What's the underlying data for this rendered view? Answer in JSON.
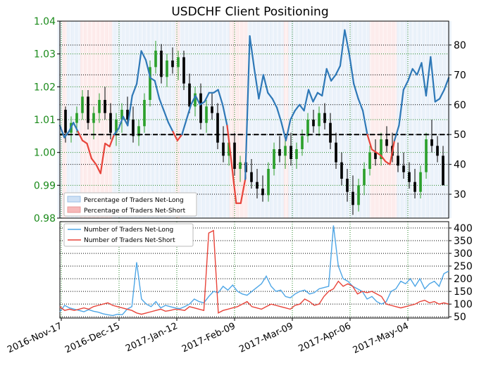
{
  "colors": {
    "left_axis_text": "#1a8a1a",
    "long_line": "#2e78b7",
    "short_line": "#e8443a",
    "long_fill": "#dbe8f5",
    "short_fill": "#fbdcdc",
    "candle_up": "#2ca02c",
    "candle_down": "#000000",
    "grid_green": "#2a8a2a",
    "small_long": "#4ea6e6",
    "small_short": "#e8443a"
  },
  "chart_data": [
    {
      "type": "line",
      "title": "USDCHF Client Positioning",
      "x_tick_labels": [
        "2016-Nov-17",
        "2016-Dec-15",
        "2017-Jan-12",
        "2017-Feb-09",
        "2017-Mar-09",
        "2017-Apr-06",
        "2017-May-04"
      ],
      "y_left_ticks": [
        "0.98",
        "0.99",
        "1.00",
        "1.01",
        "1.02",
        "1.03",
        "1.04"
      ],
      "ylim_left": [
        0.98,
        1.04
      ],
      "y_right_ticks": [
        "30",
        "40",
        "50",
        "60",
        "70",
        "80"
      ],
      "ylim_right": [
        22,
        88
      ],
      "reference_line": 50,
      "legend": [
        "Percentage of Traders Net-Long",
        "Percentage of Traders Net-Short"
      ],
      "legend_position": "lower-left",
      "percent_net_long": [
        53,
        49,
        51,
        54,
        51,
        48,
        47,
        42,
        40,
        37,
        47,
        46,
        50,
        52,
        56,
        53,
        63,
        67,
        78,
        75,
        69,
        68,
        62,
        58,
        54,
        51,
        48,
        50,
        55,
        60,
        63,
        60,
        61,
        64,
        64,
        65,
        60,
        53,
        40,
        27,
        27,
        35,
        83,
        72,
        62,
        70,
        64,
        62,
        59,
        54,
        48,
        55,
        58,
        60,
        58,
        65,
        61,
        64,
        63,
        72,
        68,
        70,
        73,
        85,
        77,
        67,
        62,
        58,
        50,
        45,
        44,
        43,
        41,
        40,
        48,
        53,
        65,
        68,
        72,
        70,
        74,
        63,
        76,
        61,
        62,
        65,
        69
      ],
      "candles_ohlc": [
        [
          1.013,
          1.014,
          1.003,
          1.006
        ],
        [
          1.006,
          1.011,
          1.003,
          1.009
        ],
        [
          1.009,
          1.014,
          1.006,
          1.012
        ],
        [
          1.012,
          1.019,
          1.01,
          1.017
        ],
        [
          1.017,
          1.019,
          1.007,
          1.009
        ],
        [
          1.009,
          1.014,
          1.004,
          1.012
        ],
        [
          1.012,
          1.018,
          1.009,
          1.016
        ],
        [
          1.016,
          1.02,
          1.01,
          1.012
        ],
        [
          1.012,
          1.015,
          1.004,
          1.006
        ],
        [
          1.006,
          1.012,
          1.002,
          1.01
        ],
        [
          1.01,
          1.015,
          1.006,
          1.013
        ],
        [
          1.013,
          1.017,
          1.008,
          1.01
        ],
        [
          1.01,
          1.014,
          1.003,
          1.005
        ],
        [
          1.005,
          1.01,
          1.002,
          1.008
        ],
        [
          1.008,
          1.018,
          1.006,
          1.016
        ],
        [
          1.016,
          1.028,
          1.014,
          1.026
        ],
        [
          1.026,
          1.034,
          1.024,
          1.031
        ],
        [
          1.031,
          1.033,
          1.021,
          1.023
        ],
        [
          1.023,
          1.03,
          1.02,
          1.028
        ],
        [
          1.028,
          1.032,
          1.024,
          1.026
        ],
        [
          1.026,
          1.031,
          1.022,
          1.029
        ],
        [
          1.029,
          1.031,
          1.019,
          1.021
        ],
        [
          1.021,
          1.024,
          1.012,
          1.014
        ],
        [
          1.014,
          1.02,
          1.011,
          1.018
        ],
        [
          1.018,
          1.021,
          1.007,
          1.009
        ],
        [
          1.009,
          1.016,
          1.006,
          1.014
        ],
        [
          1.014,
          1.018,
          1.01,
          1.012
        ],
        [
          1.012,
          1.015,
          1.001,
          1.003
        ],
        [
          1.003,
          1.008,
          0.997,
          0.999
        ],
        [
          0.999,
          1.005,
          0.996,
          1.003
        ],
        [
          1.003,
          1.006,
          0.993,
          0.995
        ],
        [
          0.995,
          0.999,
          0.991,
          0.997
        ],
        [
          0.997,
          1.001,
          0.992,
          0.994
        ],
        [
          0.994,
          0.998,
          0.989,
          0.991
        ],
        [
          0.991,
          0.995,
          0.986,
          0.989
        ],
        [
          0.989,
          0.993,
          0.985,
          0.987
        ],
        [
          0.987,
          0.997,
          0.985,
          0.995
        ],
        [
          0.995,
          1.003,
          0.993,
          1.001
        ],
        [
          1.001,
          1.005,
          0.997,
          0.999
        ],
        [
          0.999,
          1.004,
          0.995,
          1.002
        ],
        [
          1.002,
          1.006,
          0.996,
          0.998
        ],
        [
          0.998,
          1.003,
          0.995,
          1.001
        ],
        [
          1.001,
          1.007,
          0.999,
          1.005
        ],
        [
          1.005,
          1.012,
          1.003,
          1.01
        ],
        [
          1.01,
          1.013,
          1.006,
          1.008
        ],
        [
          1.008,
          1.014,
          1.005,
          1.012
        ],
        [
          1.012,
          1.015,
          1.007,
          1.009
        ],
        [
          1.009,
          1.012,
          1.001,
          1.003
        ],
        [
          1.003,
          1.006,
          0.995,
          0.997
        ],
        [
          0.997,
          1.0,
          0.99,
          0.992
        ],
        [
          0.992,
          0.995,
          0.985,
          0.988
        ],
        [
          0.988,
          0.993,
          0.981,
          0.984
        ],
        [
          0.984,
          0.992,
          0.982,
          0.99
        ],
        [
          0.99,
          0.997,
          0.987,
          0.995
        ],
        [
          0.995,
          1.002,
          0.993,
          1.0
        ],
        [
          1.0,
          1.004,
          0.996,
          0.998
        ],
        [
          0.998,
          1.006,
          0.996,
          1.004
        ],
        [
          1.004,
          1.008,
          1.0,
          1.002
        ],
        [
          1.002,
          1.006,
          0.997,
          0.999
        ],
        [
          0.999,
          1.003,
          0.994,
          0.996
        ],
        [
          0.996,
          1.0,
          0.992,
          0.994
        ],
        [
          0.994,
          0.997,
          0.989,
          0.991
        ],
        [
          0.991,
          0.995,
          0.986,
          0.988
        ],
        [
          0.988,
          0.996,
          0.986,
          0.994
        ],
        [
          0.994,
          1.006,
          0.992,
          1.004
        ],
        [
          1.004,
          1.01,
          1.0,
          1.002
        ],
        [
          1.002,
          1.005,
          0.997,
          0.999
        ],
        [
          0.999,
          1.002,
          0.993,
          0.99
        ]
      ],
      "candle_count_note": ""
    },
    {
      "type": "line",
      "x_tick_labels": [
        "2016-Nov-17",
        "2016-Dec-15",
        "2017-Jan-12",
        "2017-Feb-09",
        "2017-Mar-09",
        "2017-Apr-06",
        "2017-May-04"
      ],
      "y_right_ticks": [
        "50",
        "100",
        "150",
        "200",
        "250",
        "300",
        "350",
        "400"
      ],
      "ylim": [
        45,
        425
      ],
      "legend": [
        "Number of Traders Net-Long",
        "Number of Traders Net-Short"
      ],
      "legend_position": "upper-left",
      "series": [
        {
          "name": "Number of Traders Net-Long",
          "values": [
            70,
            95,
            85,
            80,
            75,
            70,
            78,
            72,
            68,
            62,
            58,
            55,
            60,
            58,
            80,
            90,
            265,
            120,
            100,
            90,
            110,
            85,
            95,
            90,
            85,
            82,
            90,
            100,
            120,
            110,
            105,
            130,
            150,
            145,
            170,
            155,
            175,
            150,
            140,
            135,
            150,
            165,
            180,
            210,
            170,
            150,
            155,
            130,
            125,
            140,
            150,
            155,
            140,
            145,
            160,
            165,
            170,
            410,
            250,
            200,
            190,
            170,
            160,
            150,
            120,
            130,
            110,
            100,
            110,
            150,
            160,
            190,
            180,
            200,
            170,
            200,
            160,
            180,
            190,
            170,
            220,
            230
          ]
        },
        {
          "name": "Number of Traders Net-Short",
          "values": [
            90,
            75,
            80,
            75,
            80,
            85,
            80,
            90,
            95,
            100,
            105,
            95,
            90,
            85,
            80,
            75,
            65,
            60,
            65,
            70,
            75,
            80,
            72,
            75,
            80,
            78,
            75,
            90,
            85,
            80,
            75,
            380,
            390,
            65,
            75,
            80,
            85,
            90,
            100,
            110,
            90,
            85,
            80,
            90,
            100,
            95,
            90,
            85,
            80,
            95,
            100,
            120,
            110,
            95,
            100,
            130,
            150,
            160,
            190,
            170,
            180,
            170,
            140,
            150,
            145,
            150,
            140,
            130,
            100,
            95,
            90,
            85,
            90,
            95,
            100,
            110,
            115,
            105,
            110,
            100,
            105,
            100
          ]
        }
      ]
    }
  ]
}
